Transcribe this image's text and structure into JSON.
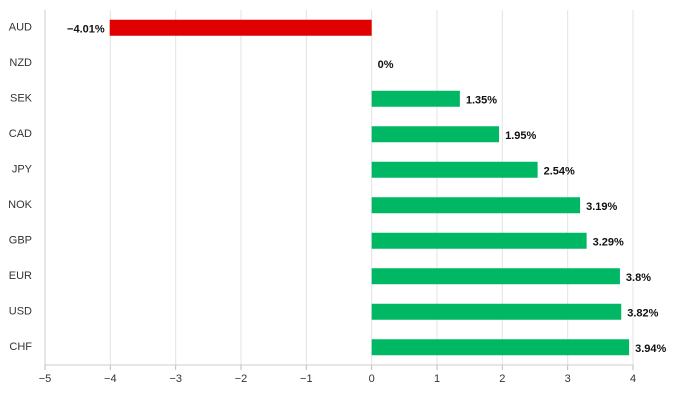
{
  "chart_data": {
    "type": "bar",
    "orientation": "horizontal",
    "categories": [
      "AUD",
      "NZD",
      "SEK",
      "CAD",
      "JPY",
      "NOK",
      "GBP",
      "EUR",
      "USD",
      "CHF"
    ],
    "values": [
      -4.01,
      0,
      1.35,
      1.95,
      2.54,
      3.19,
      3.29,
      3.8,
      3.82,
      3.94
    ],
    "value_labels": [
      "−4.01%",
      "0%",
      "1.35%",
      "1.95%",
      "2.54%",
      "3.19%",
      "3.29%",
      "3.8%",
      "3.82%",
      "3.94%"
    ],
    "colors": [
      "#e00000",
      "#00b764",
      "#00b764",
      "#00b764",
      "#00b764",
      "#00b764",
      "#00b764",
      "#00b764",
      "#00b764",
      "#00b764"
    ],
    "xlim": [
      -5,
      4
    ],
    "xticks": [
      {
        "value": -5,
        "label": "−5"
      },
      {
        "value": -4,
        "label": "−4"
      },
      {
        "value": -3,
        "label": "−3"
      },
      {
        "value": -2,
        "label": "−2"
      },
      {
        "value": -1,
        "label": "−1"
      },
      0,
      1,
      2,
      3,
      4
    ],
    "grid": true
  }
}
